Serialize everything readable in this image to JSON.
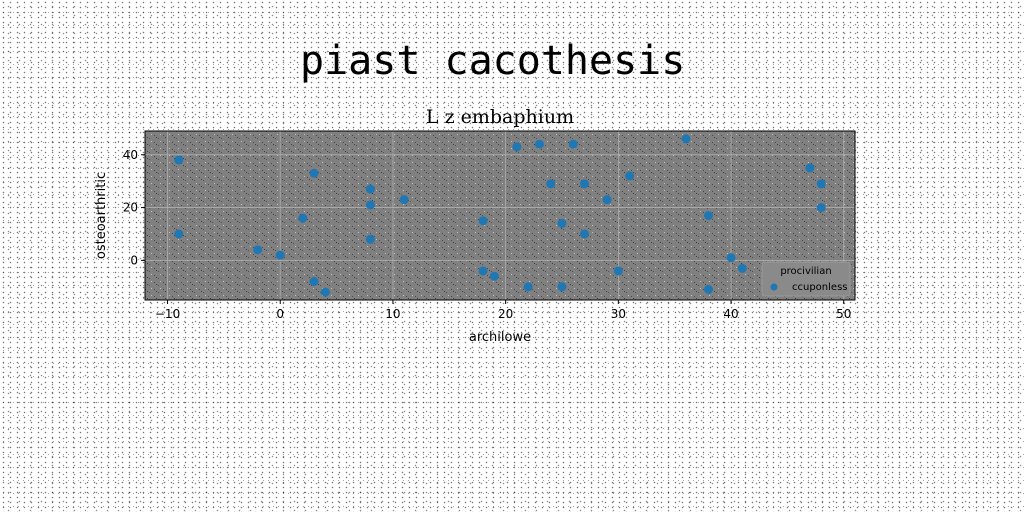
{
  "figure": {
    "suptitle": "piast cacothesis"
  },
  "colors": {
    "plot_background": "#808080",
    "grid": "#b0b0b0",
    "marker": "#1f77b4",
    "page_background": "#ffffff"
  },
  "chart_data": {
    "type": "scatter",
    "title": "L z embaphium",
    "xlabel": "archilowe",
    "ylabel": "osteoarthritic",
    "xlim": [
      -12,
      51
    ],
    "ylim": [
      -15,
      49
    ],
    "xticks": [
      -10,
      0,
      10,
      20,
      30,
      40,
      50
    ],
    "yticks": [
      0,
      20,
      40
    ],
    "grid": true,
    "legend": {
      "placement": "bottom-right",
      "title": "procivilian",
      "entries": [
        "ccuponless"
      ]
    },
    "series": [
      {
        "name": "ccuponless",
        "x": [
          -9,
          -9,
          -2,
          0,
          2,
          3,
          3,
          4,
          8,
          8,
          8,
          11,
          18,
          18,
          19,
          21,
          22,
          23,
          24,
          25,
          25,
          26,
          27,
          27,
          29,
          30,
          31,
          36,
          38,
          38,
          40,
          41,
          47,
          48,
          48
        ],
        "y": [
          38,
          10,
          4,
          2,
          16,
          33,
          -8,
          -12,
          27,
          21,
          8,
          23,
          15,
          -4,
          -6,
          43,
          -10,
          44,
          29,
          14,
          -10,
          44,
          29,
          10,
          23,
          -4,
          32,
          46,
          17,
          -11,
          1,
          -3,
          35,
          29,
          20
        ]
      }
    ]
  }
}
